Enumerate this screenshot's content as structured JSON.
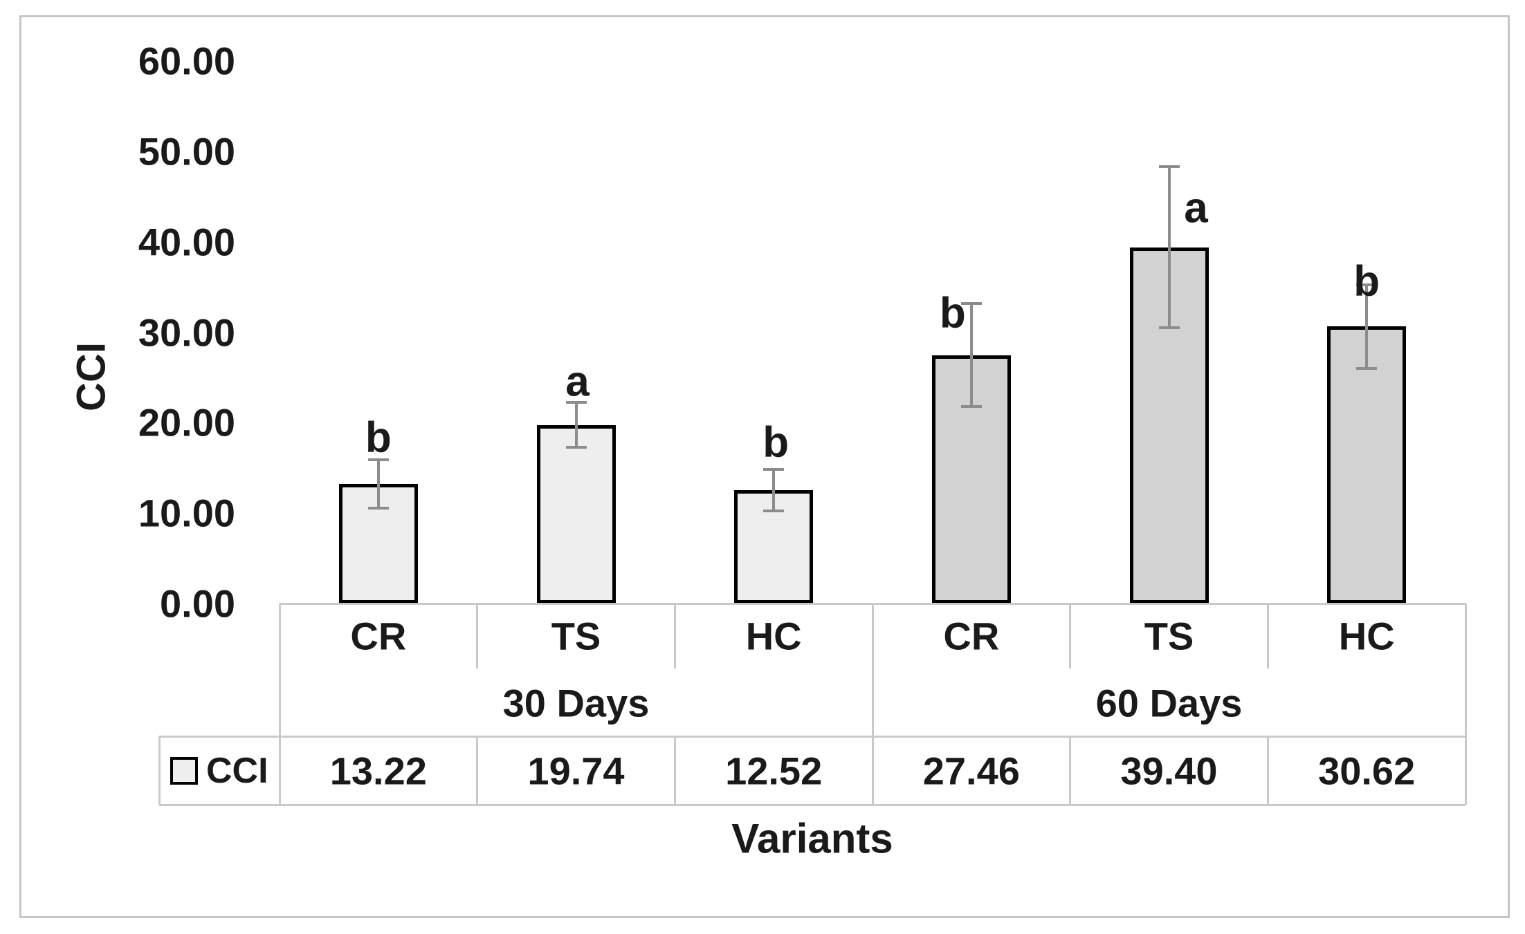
{
  "figure": {
    "background": "#ffffff",
    "frame_border_color": "#c6c6c6"
  },
  "chart_data": {
    "type": "bar",
    "title": "",
    "ylabel": "CCI",
    "xlabel": "Variants",
    "ylim": [
      0,
      60
    ],
    "grid": false,
    "y_tick_labels": [
      "0.00",
      "10.00",
      "20.00",
      "30.00",
      "40.00",
      "50.00",
      "60.00"
    ],
    "series_name": "CCI",
    "legend_position": "data-table-left",
    "groups": [
      {
        "label": "30 Days",
        "bar_color": "#eeeeee",
        "points": [
          {
            "category": "CR",
            "value": 13.22,
            "value_text": "13.22",
            "error": 2.7,
            "letter": "b",
            "letter_dx": 0,
            "letter_dy": -2
          },
          {
            "category": "TS",
            "value": 19.74,
            "value_text": "19.74",
            "error": 2.5,
            "letter": "a",
            "letter_dx": 2,
            "letter_dy": 0
          },
          {
            "category": "HC",
            "value": 12.52,
            "value_text": "12.52",
            "error": 2.3,
            "letter": "b",
            "letter_dx": 3,
            "letter_dy": -9
          }
        ]
      },
      {
        "label": "60 Days",
        "bar_color": "#d2d2d2",
        "points": [
          {
            "category": "CR",
            "value": 27.46,
            "value_text": "27.46",
            "error": 5.7,
            "letter": "b",
            "letter_dx": -27,
            "letter_dy": 44
          },
          {
            "category": "TS",
            "value": 39.4,
            "value_text": "39.40",
            "error": 8.9,
            "letter": "a",
            "letter_dx": 39,
            "letter_dy": 90
          },
          {
            "category": "HC",
            "value": 30.62,
            "value_text": "30.62",
            "error": 4.6,
            "letter": "b",
            "letter_dx": 0,
            "letter_dy": 25
          }
        ]
      }
    ],
    "colors": {
      "bar_border": "#000000",
      "error_bar": "#8c8c8c",
      "table_line": "#c9c9c9",
      "text": "#1a1a1a"
    }
  }
}
